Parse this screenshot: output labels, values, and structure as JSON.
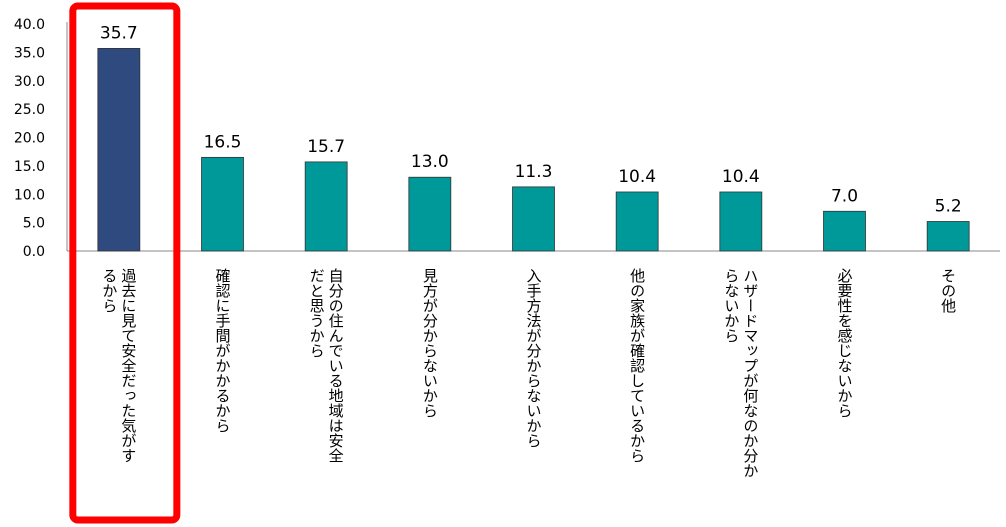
{
  "chart_data": {
    "type": "bar",
    "categories": [
      "過去に見て安全だった気がするから",
      "確認に手間がかかるから",
      "自分の住んでいる地域は安全だと思うから",
      "見方が分からないから",
      "入手方法が分からないから",
      "他の家族が確認しているから",
      "ハザードマップが何なのか分からないから",
      "必要性を感じないから",
      "その他"
    ],
    "category_lines": [
      [
        "過去に見て安全だった気がす",
        "るから"
      ],
      [
        "確認に手間がかかるから"
      ],
      [
        "自分の住んでいる地域は安全",
        "だと思うから"
      ],
      [
        "見方が分からないから"
      ],
      [
        "入手方法が分からないから"
      ],
      [
        "他の家族が確認しているから"
      ],
      [
        "ハザードマップが何なのか分か",
        "らないから"
      ],
      [
        "必要性を感じないから"
      ],
      [
        "その他"
      ]
    ],
    "values": [
      35.7,
      16.5,
      15.7,
      13.0,
      11.3,
      10.4,
      10.4,
      7.0,
      5.2
    ],
    "data_labels": [
      "35.7",
      "16.5",
      "15.7",
      "13.0",
      "11.3",
      "10.4",
      "10.4",
      "7.0",
      "5.2"
    ],
    "ylim": [
      0,
      40
    ],
    "yticks": [
      "40.0",
      "35.0",
      "30.0",
      "25.0",
      "20.0",
      "15.0",
      "10.0",
      "5.0",
      "0.0"
    ],
    "grid": false,
    "legend": "none",
    "highlight_index": 0,
    "colors": {
      "bar": "#009999",
      "bar_highlight": "#2E4A7E",
      "highlight_box": "#FF0000",
      "axis": "#888888",
      "text": "#000000"
    }
  }
}
